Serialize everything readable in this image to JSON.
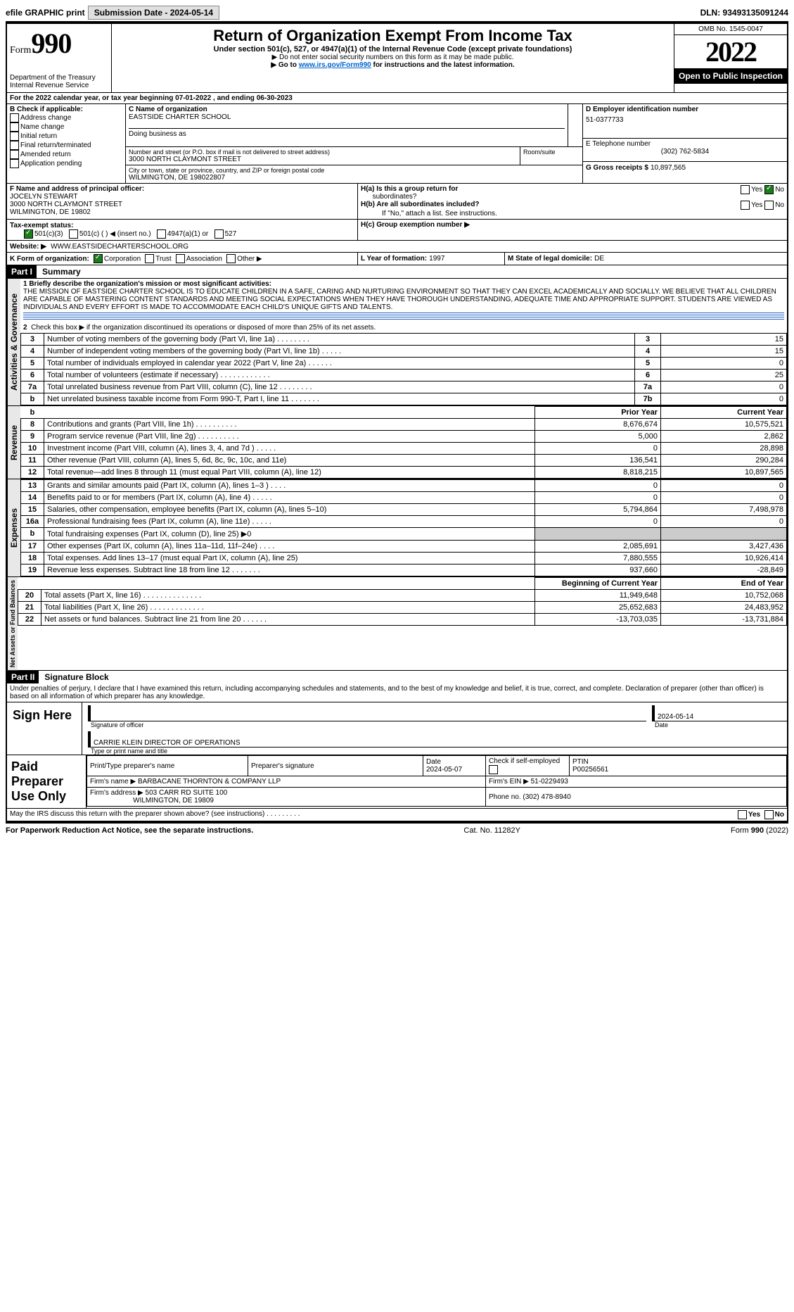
{
  "topbar": {
    "efile": "efile GRAPHIC print",
    "submission_label": "Submission Date - 2024-05-14",
    "dln_label": "DLN: 93493135091244"
  },
  "header": {
    "form_word": "Form",
    "form_num": "990",
    "dept": "Department of the Treasury",
    "irs": "Internal Revenue Service",
    "title": "Return of Organization Exempt From Income Tax",
    "sub": "Under section 501(c), 527, or 4947(a)(1) of the Internal Revenue Code (except private foundations)",
    "note1": "▶ Do not enter social security numbers on this form as it may be made public.",
    "note2_pre": "▶ Go to ",
    "note2_link": "www.irs.gov/Form990",
    "note2_post": " for instructions and the latest information.",
    "omb": "OMB No. 1545-0047",
    "year": "2022",
    "open": "Open to Public Inspection"
  },
  "lineA": "For the 2022 calendar year, or tax year beginning 07-01-2022    , and ending 06-30-2023",
  "B": {
    "title": "B Check if applicable:",
    "items": [
      "Address change",
      "Name change",
      "Initial return",
      "Final return/terminated",
      "Amended return",
      "Application pending"
    ]
  },
  "C": {
    "name_lbl": "C Name of organization",
    "name": "EASTSIDE CHARTER SCHOOL",
    "dba_lbl": "Doing business as",
    "addr_lbl": "Number and street (or P.O. box if mail is not delivered to street address)",
    "addr": "3000 NORTH CLAYMONT STREET",
    "room_lbl": "Room/suite",
    "city_lbl": "City or town, state or province, country, and ZIP or foreign postal code",
    "city": "WILMINGTON, DE  198022807"
  },
  "D": {
    "lbl": "D Employer identification number",
    "val": "51-0377733"
  },
  "E": {
    "lbl": "E Telephone number",
    "val": "(302) 762-5834"
  },
  "G": {
    "lbl": "G Gross receipts $",
    "val": "10,897,565"
  },
  "F": {
    "lbl": "F  Name and address of principal officer:",
    "name": "JOCELYN STEWART",
    "addr1": "3000 NORTH CLAYMONT STREET",
    "addr2": "WILMINGTON, DE  19802"
  },
  "H": {
    "a_lbl": "H(a)  Is this a group return for",
    "a_sub": "subordinates?",
    "b_lbl": "H(b)  Are all subordinates included?",
    "b_note": "If \"No,\" attach a list. See instructions.",
    "c_lbl": "H(c)  Group exemption number ▶",
    "yes": "Yes",
    "no": "No"
  },
  "I": {
    "lbl": "Tax-exempt status:",
    "c3": "501(c)(3)",
    "c": "501(c) (   ) ◀ (insert no.)",
    "a1": "4947(a)(1) or",
    "s527": "527"
  },
  "J": {
    "lbl": "Website: ▶",
    "val": "WWW.EASTSIDECHARTERSCHOOL.ORG"
  },
  "K": {
    "lbl": "K Form of organization:",
    "corp": "Corporation",
    "trust": "Trust",
    "assoc": "Association",
    "other": "Other ▶"
  },
  "L": {
    "lbl": "L Year of formation:",
    "val": "1997"
  },
  "M": {
    "lbl": "M State of legal domicile:",
    "val": "DE"
  },
  "partI": {
    "hdr": "Part I",
    "title": "Summary"
  },
  "summary": {
    "l1_lbl": "1 Briefly describe the organization's mission or most significant activities:",
    "l1": "THE MISSION OF EASTSIDE CHARTER SCHOOL IS TO EDUCATE CHILDREN IN A SAFE, CARING AND NURTURING ENVIRONMENT SO THAT THEY CAN EXCEL ACADEMICALLY AND SOCIALLY. WE BELIEVE THAT ALL CHILDREN ARE CAPABLE OF MASTERING CONTENT STANDARDS AND MEETING SOCIAL EXPECTATIONS WHEN THEY HAVE THOROUGH UNDERSTANDING, ADEQUATE TIME AND APPROPRIATE SUPPORT. STUDENTS ARE VIEWED AS INDIVIDUALS AND EVERY EFFORT IS MADE TO ACCOMMODATE EACH CHILD'S UNIQUE GIFTS AND TALENTS.",
    "l2": "Check this box ▶       if the organization discontinued its operations or disposed of more than 25% of its net assets.",
    "rows_gov": [
      {
        "n": "3",
        "t": "Number of voting members of the governing body (Part VI, line 1a)   .    .    .    .    .    .    .    .",
        "ln": "3",
        "v": "15"
      },
      {
        "n": "4",
        "t": "Number of independent voting members of the governing body (Part VI, line 1b)    .    .    .    .    .",
        "ln": "4",
        "v": "15"
      },
      {
        "n": "5",
        "t": "Total number of individuals employed in calendar year 2022 (Part V, line 2a)    .    .    .    .    .    .",
        "ln": "5",
        "v": "0"
      },
      {
        "n": "6",
        "t": "Total number of volunteers (estimate if necessary)   .    .    .    .    .    .    .    .    .    .    .    .",
        "ln": "6",
        "v": "25"
      },
      {
        "n": "7a",
        "t": "Total unrelated business revenue from Part VIII, column (C), line 12   .    .    .    .    .    .    .    .",
        "ln": "7a",
        "v": "0"
      },
      {
        "n": "b",
        "t": "Net unrelated business taxable income from Form 990-T, Part I, line 11    .    .    .    .    .    .    .",
        "ln": "7b",
        "v": "0"
      }
    ],
    "col_py": "Prior Year",
    "col_cy": "Current Year",
    "rows_rev": [
      {
        "n": "8",
        "t": "Contributions and grants (Part VIII, line 1h)   .   .   .   .   .   .   .   .   .   .",
        "py": "8,676,674",
        "cy": "10,575,521"
      },
      {
        "n": "9",
        "t": "Program service revenue (Part VIII, line 2g)   .   .   .   .   .   .   .   .   .   .",
        "py": "5,000",
        "cy": "2,862"
      },
      {
        "n": "10",
        "t": "Investment income (Part VIII, column (A), lines 3, 4, and 7d )   .   .   .   .   .",
        "py": "0",
        "cy": "28,898"
      },
      {
        "n": "11",
        "t": "Other revenue (Part VIII, column (A), lines 5, 6d, 8c, 9c, 10c, and 11e)",
        "py": "136,541",
        "cy": "290,284"
      },
      {
        "n": "12",
        "t": "Total revenue—add lines 8 through 11 (must equal Part VIII, column (A), line 12)",
        "py": "8,818,215",
        "cy": "10,897,565"
      }
    ],
    "rows_exp": [
      {
        "n": "13",
        "t": "Grants and similar amounts paid (Part IX, column (A), lines 1–3 )  .   .   .   .",
        "py": "0",
        "cy": "0"
      },
      {
        "n": "14",
        "t": "Benefits paid to or for members (Part IX, column (A), line 4)   .   .   .   .   .",
        "py": "0",
        "cy": "0"
      },
      {
        "n": "15",
        "t": "Salaries, other compensation, employee benefits (Part IX, column (A), lines 5–10)",
        "py": "5,794,864",
        "cy": "7,498,978"
      },
      {
        "n": "16a",
        "t": "Professional fundraising fees (Part IX, column (A), line 11e)   .   .   .   .   .",
        "py": "0",
        "cy": "0"
      },
      {
        "n": "b",
        "t": "Total fundraising expenses (Part IX, column (D), line 25) ▶0",
        "py": "",
        "cy": "",
        "grey": true
      },
      {
        "n": "17",
        "t": "Other expenses (Part IX, column (A), lines 11a–11d, 11f–24e)   .   .   .   .",
        "py": "2,085,691",
        "cy": "3,427,436"
      },
      {
        "n": "18",
        "t": "Total expenses. Add lines 13–17 (must equal Part IX, column (A), line 25)",
        "py": "7,880,555",
        "cy": "10,926,414"
      },
      {
        "n": "19",
        "t": "Revenue less expenses. Subtract line 18 from line 12  .   .   .   .   .   .   .",
        "py": "937,660",
        "cy": "-28,849"
      }
    ],
    "col_boy": "Beginning of Current Year",
    "col_eoy": "End of Year",
    "rows_net": [
      {
        "n": "20",
        "t": "Total assets (Part X, line 16)  .   .   .   .   .   .   .   .   .   .   .   .   .   .",
        "py": "11,949,648",
        "cy": "10,752,068"
      },
      {
        "n": "21",
        "t": "Total liabilities (Part X, line 26)  .   .   .   .   .   .   .   .   .   .   .   .   .",
        "py": "25,652,683",
        "cy": "24,483,952"
      },
      {
        "n": "22",
        "t": "Net assets or fund balances. Subtract line 21 from line 20   .   .   .   .   .   .",
        "py": "-13,703,035",
        "cy": "-13,731,884"
      }
    ],
    "vlabels": {
      "gov": "Activities & Governance",
      "rev": "Revenue",
      "exp": "Expenses",
      "net": "Net Assets or Fund Balances"
    }
  },
  "partII": {
    "hdr": "Part II",
    "title": "Signature Block"
  },
  "sig": {
    "decl": "Under penalties of perjury, I declare that I have examined this return, including accompanying schedules and statements, and to the best of my knowledge and belief, it is true, correct, and complete. Declaration of preparer (other than officer) is based on all information of which preparer has any knowledge.",
    "sign_here": "Sign Here",
    "sig_officer": "Signature of officer",
    "date": "Date",
    "date_val": "2024-05-14",
    "name": "CARRIE KLEIN  DIRECTOR OF OPERATIONS",
    "type_name": "Type or print name and title"
  },
  "prep": {
    "title": "Paid Preparer Use Only",
    "h1": "Print/Type preparer's name",
    "h2": "Preparer's signature",
    "h3": "Date",
    "h3v": "2024-05-07",
    "h4": "Check        if self-employed",
    "h5": "PTIN",
    "h5v": "P00256561",
    "firm_lbl": "Firm's name    ▶",
    "firm": "BARBACANE THORNTON & COMPANY LLP",
    "ein_lbl": "Firm's EIN ▶",
    "ein": "51-0229493",
    "addr_lbl": "Firm's address ▶",
    "addr1": "503 CARR RD SUITE 100",
    "addr2": "WILMINGTON, DE  19809",
    "phone_lbl": "Phone no.",
    "phone": "(302) 478-8940"
  },
  "discuss": "May the IRS discuss this return with the preparer shown above? (see instructions)   .    .    .    .    .    .    .    .    .",
  "footer": {
    "left": "For Paperwork Reduction Act Notice, see the separate instructions.",
    "mid": "Cat. No. 11282Y",
    "right": "Form 990 (2022)"
  }
}
